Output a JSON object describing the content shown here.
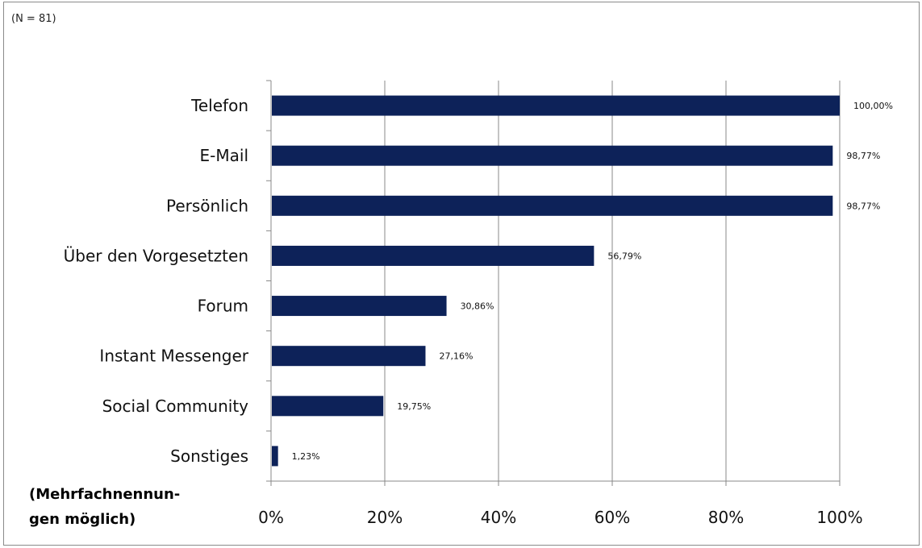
{
  "header": {
    "sample_size": "(N = 81)"
  },
  "footnote": {
    "line1": "(Mehrfachnennun-",
    "line2": "gen möglich)"
  },
  "colors": {
    "bar": "#0d2259",
    "grid": "#888888",
    "axis": "#888888"
  },
  "chart_data": {
    "type": "bar",
    "orientation": "horizontal",
    "categories": [
      "Telefon",
      "E-Mail",
      "Persönlich",
      "Über den Vorgesetzten",
      "Forum",
      "Instant Messenger",
      "Social Community",
      "Sonstiges"
    ],
    "values": [
      100.0,
      98.77,
      98.77,
      56.79,
      30.86,
      27.16,
      19.75,
      1.23
    ],
    "value_labels": [
      "100,00%",
      "98,77%",
      "98,77%",
      "56,79%",
      "30,86%",
      "27,16%",
      "19,75%",
      "1,23%"
    ],
    "xlim": [
      0,
      100
    ],
    "xticks": [
      0,
      20,
      40,
      60,
      80,
      100
    ],
    "xtick_labels": [
      "0%",
      "20%",
      "40%",
      "60%",
      "80%",
      "100%"
    ],
    "grid": true,
    "legend": "none"
  }
}
